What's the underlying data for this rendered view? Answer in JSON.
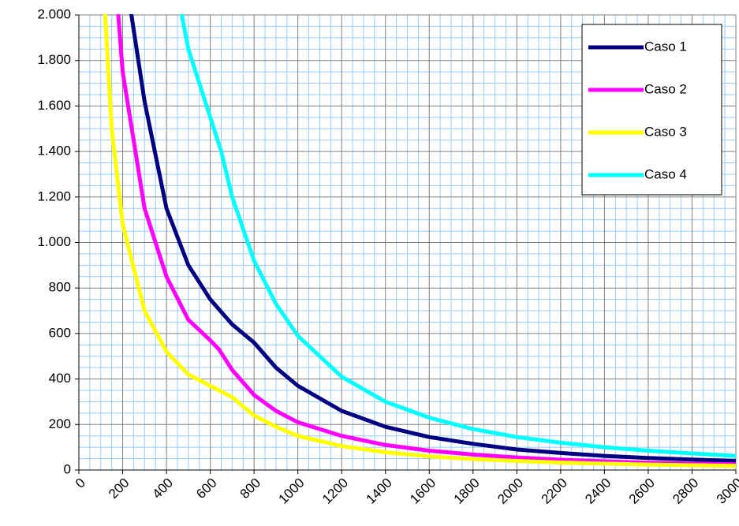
{
  "chart_data": {
    "type": "line",
    "xlim": [
      0,
      3000
    ],
    "ylim": [
      0,
      2000
    ],
    "xticks": [
      0,
      200,
      400,
      600,
      800,
      1000,
      1200,
      1400,
      1600,
      1800,
      2000,
      2200,
      2400,
      2600,
      2800,
      3000
    ],
    "yticks": [
      0,
      200,
      400,
      600,
      800,
      {
        "value": 1000,
        "label": "1.000"
      },
      {
        "value": 1200,
        "label": "1.200"
      },
      {
        "value": 1400,
        "label": "1.400"
      },
      {
        "value": 1600,
        "label": "1.600"
      },
      {
        "value": 1800,
        "label": "1.800"
      },
      {
        "value": 2000,
        "label": "2.000"
      }
    ],
    "grid": true,
    "legend": "top-right",
    "series": [
      {
        "name": "Caso 1",
        "color": "#000080",
        "x": [
          240,
          300,
          400,
          500,
          600,
          700,
          800,
          900,
          1000,
          1200,
          1400,
          1600,
          1800,
          2000,
          2200,
          2400,
          2600,
          2800,
          3000
        ],
        "values": [
          2000,
          1620,
          1150,
          900,
          750,
          640,
          560,
          450,
          370,
          260,
          190,
          145,
          115,
          90,
          75,
          62,
          53,
          46,
          40
        ]
      },
      {
        "name": "Caso 2",
        "color": "#ff00ff",
        "x": [
          180,
          200,
          300,
          400,
          500,
          600,
          640,
          700,
          800,
          900,
          1000,
          1200,
          1400,
          1600,
          1800,
          2000,
          2200,
          2400,
          2600,
          2800,
          3000
        ],
        "values": [
          2000,
          1750,
          1150,
          850,
          660,
          570,
          530,
          440,
          330,
          260,
          210,
          150,
          110,
          85,
          68,
          55,
          45,
          38,
          32,
          28,
          25
        ]
      },
      {
        "name": "Caso 3",
        "color": "#ffff00",
        "x": [
          120,
          150,
          200,
          300,
          400,
          500,
          600,
          700,
          800,
          900,
          1000,
          1200,
          1400,
          1600,
          1800,
          2000,
          2200,
          2400,
          2600,
          2800,
          3000
        ],
        "values": [
          2000,
          1500,
          1080,
          700,
          520,
          420,
          370,
          320,
          240,
          190,
          150,
          105,
          78,
          60,
          48,
          40,
          33,
          28,
          24,
          21,
          18
        ]
      },
      {
        "name": "Caso 4",
        "color": "#00ffff",
        "x": [
          470,
          500,
          600,
          650,
          700,
          800,
          900,
          1000,
          1200,
          1400,
          1600,
          1800,
          2000,
          2200,
          2400,
          2600,
          2800,
          3000
        ],
        "values": [
          2000,
          1850,
          1550,
          1400,
          1200,
          920,
          730,
          590,
          410,
          300,
          230,
          180,
          145,
          120,
          100,
          85,
          73,
          62
        ]
      }
    ]
  }
}
